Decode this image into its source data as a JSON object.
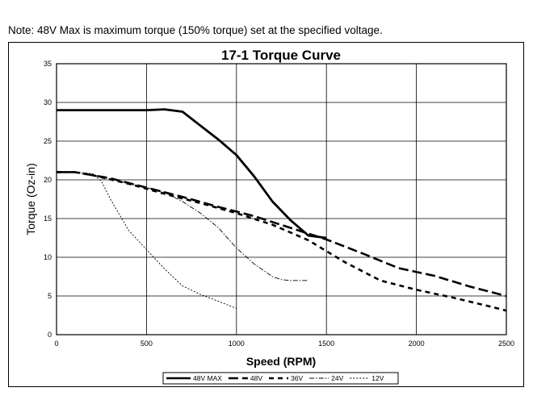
{
  "note": "Note:  48V Max is maximum torque (150% torque) set at the specified voltage.",
  "chart_data": {
    "type": "line",
    "title": "17-1 Torque Curve",
    "xlabel": "Speed (RPM)",
    "ylabel": "Torque (Oz-in)",
    "xlim": [
      0,
      2500
    ],
    "ylim": [
      0,
      35
    ],
    "xticks": [
      0,
      500,
      1000,
      1500,
      2000,
      2500
    ],
    "xtick_labels": [
      "0",
      "500",
      "1000",
      "1500",
      "2000",
      "2500"
    ],
    "yticks": [
      0,
      5,
      10,
      15,
      20,
      25,
      30,
      35
    ],
    "ytick_labels": [
      "0",
      "5",
      "10",
      "15",
      "20",
      "25",
      "30",
      "35"
    ],
    "grid": true,
    "legend_position": "bottom",
    "series": [
      {
        "name": "48V MAX",
        "style": "solid",
        "color": "#000000",
        "x": [
          0,
          300,
          500,
          600,
          700,
          800,
          900,
          1000,
          1100,
          1200,
          1300,
          1400,
          1500
        ],
        "y": [
          29,
          29,
          29,
          29.1,
          28.8,
          27,
          25.2,
          23.2,
          20.4,
          17.2,
          14.8,
          12.8,
          12.5
        ]
      },
      {
        "name": "48V",
        "style": "long-dash",
        "color": "#000000",
        "x": [
          0,
          100,
          200,
          300,
          500,
          700,
          900,
          1100,
          1300,
          1500,
          1700,
          1900,
          2100,
          2300,
          2500
        ],
        "y": [
          21,
          21,
          20.6,
          20.2,
          19,
          17.8,
          16.5,
          15.3,
          13.8,
          12.3,
          10.5,
          8.6,
          7.6,
          6.2,
          5
        ]
      },
      {
        "name": "36V",
        "style": "dash",
        "color": "#000000",
        "x": [
          0,
          100,
          200,
          400,
          600,
          800,
          1000,
          1200,
          1400,
          1600,
          1800,
          2000,
          2200,
          2400,
          2500
        ],
        "y": [
          21,
          21,
          20.6,
          19.5,
          18.2,
          17,
          15.7,
          14.2,
          12.2,
          9.4,
          7,
          5.8,
          4.8,
          3.7,
          3.1
        ]
      },
      {
        "name": "24V",
        "style": "dash-dot",
        "color": "#000000",
        "x": [
          0,
          100,
          300,
          500,
          600,
          700,
          800,
          900,
          1000,
          1100,
          1200,
          1250,
          1300,
          1400
        ],
        "y": [
          21,
          21,
          20.1,
          19,
          18.4,
          17.2,
          15.7,
          13.8,
          11.2,
          9.1,
          7.5,
          7.1,
          7,
          7
        ]
      },
      {
        "name": "12V",
        "style": "fine-dash",
        "color": "#000000",
        "x": [
          0,
          100,
          200,
          250,
          300,
          400,
          500,
          600,
          700,
          800,
          900,
          1000
        ],
        "y": [
          21,
          21,
          20.8,
          19.8,
          17.5,
          13.5,
          11,
          8.5,
          6.3,
          5.2,
          4.3,
          3.4
        ]
      }
    ]
  }
}
